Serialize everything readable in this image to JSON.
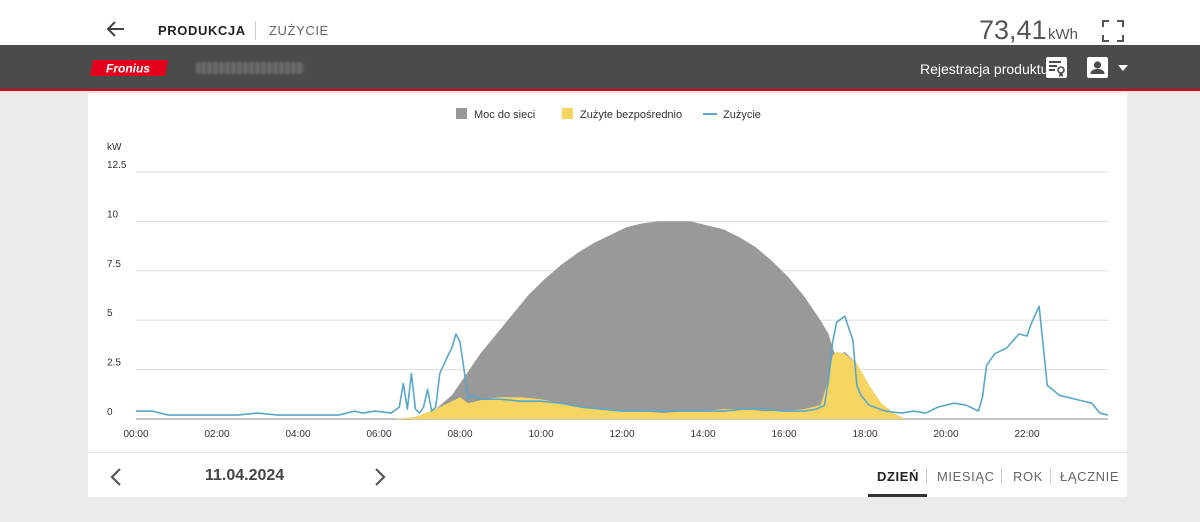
{
  "topbar": {
    "tab_production": "PRODUKCJA",
    "tab_consumption": "ZUŻYCIE",
    "energy_value": "73,41",
    "energy_unit": "kWh",
    "icons": [
      "back-arrow-icon",
      "fullscreen-icon"
    ]
  },
  "header": {
    "logo_text": "Fronius",
    "product_registration": "Rejestracja produktu",
    "icons": [
      "registration-icon",
      "user-icon",
      "caret-down-icon"
    ],
    "colors": {
      "header_bg": "#4b4b4b",
      "brand_red": "#e2001a"
    }
  },
  "chart_data": {
    "type": "area",
    "ylabel": "kW",
    "yticks": [
      "12.5",
      "10",
      "7.5",
      "5",
      "2.5",
      "0"
    ],
    "ylim": [
      0,
      12.5
    ],
    "xticks": [
      "00:00",
      "02:00",
      "04:00",
      "06:00",
      "08:00",
      "10:00",
      "12:00",
      "14:00",
      "16:00",
      "18:00",
      "20:00",
      "22:00"
    ],
    "xlim_hours": [
      0,
      24
    ],
    "grid": true,
    "legend_position": "top-center",
    "colors": {
      "grid": "#b0b0b0",
      "consumption": "#5aa7c7"
    },
    "series": [
      {
        "name": "Moc do sieci",
        "kind": "area",
        "color": "#999999",
        "x": [
          6.4,
          6.9,
          7.4,
          7.8,
          8.0,
          8.2,
          8.5,
          8.9,
          9.3,
          9.7,
          10.1,
          10.5,
          10.9,
          11.3,
          11.7,
          12.1,
          12.5,
          12.9,
          13.3,
          13.7,
          14.1,
          14.5,
          14.9,
          15.3,
          15.7,
          16.1,
          16.5,
          16.9,
          17.1,
          17.2,
          17.3,
          17.5,
          17.8,
          18.1,
          18.4,
          18.7,
          19.0
        ],
        "values": [
          0.0,
          0.1,
          0.5,
          1.2,
          1.8,
          2.4,
          3.3,
          4.3,
          5.3,
          6.3,
          7.1,
          7.8,
          8.4,
          8.9,
          9.3,
          9.7,
          9.9,
          10.0,
          10.0,
          10.0,
          9.8,
          9.6,
          9.2,
          8.7,
          8.0,
          7.2,
          6.2,
          5.0,
          4.3,
          3.6,
          3.1,
          3.4,
          2.8,
          1.7,
          0.8,
          0.3,
          0.0
        ]
      },
      {
        "name": "Zużyte bezpośrednio",
        "kind": "area",
        "color": "#f7d563",
        "x": [
          6.4,
          6.9,
          7.4,
          7.8,
          8.0,
          8.2,
          8.6,
          9.0,
          9.5,
          10.0,
          10.5,
          11.0,
          11.5,
          12.0,
          12.5,
          13.0,
          13.5,
          14.0,
          14.5,
          15.0,
          15.5,
          16.0,
          16.5,
          16.9,
          17.1,
          17.2,
          17.3,
          17.5,
          17.8,
          18.1,
          18.4,
          18.7,
          19.0
        ],
        "values": [
          0.0,
          0.1,
          0.5,
          0.9,
          1.1,
          0.8,
          1.0,
          1.1,
          1.1,
          1.0,
          0.8,
          0.6,
          0.5,
          0.4,
          0.4,
          0.3,
          0.4,
          0.4,
          0.5,
          0.5,
          0.4,
          0.4,
          0.5,
          0.7,
          2.0,
          3.2,
          3.4,
          3.3,
          2.8,
          1.7,
          0.8,
          0.3,
          0.0
        ]
      },
      {
        "name": "Zużycie",
        "kind": "line",
        "color": "#5aa7c7",
        "x": [
          0.0,
          0.4,
          0.8,
          1.0,
          1.5,
          2.0,
          2.5,
          3.0,
          3.5,
          4.0,
          4.5,
          5.0,
          5.4,
          5.6,
          5.9,
          6.3,
          6.5,
          6.6,
          6.7,
          6.8,
          6.9,
          7.0,
          7.1,
          7.2,
          7.3,
          7.4,
          7.5,
          7.7,
          7.8,
          7.9,
          8.0,
          8.1,
          8.2,
          8.3,
          8.5,
          9.0,
          9.5,
          10.0,
          10.5,
          11.0,
          11.5,
          12.0,
          12.5,
          13.0,
          13.5,
          14.0,
          14.5,
          15.0,
          15.5,
          16.0,
          16.5,
          16.8,
          17.0,
          17.1,
          17.2,
          17.3,
          17.5,
          17.7,
          17.8,
          17.9,
          18.1,
          18.5,
          18.9,
          19.2,
          19.5,
          19.8,
          20.2,
          20.5,
          20.8,
          20.9,
          21.0,
          21.2,
          21.5,
          21.8,
          22.0,
          22.1,
          22.3,
          22.5,
          22.8,
          23.2,
          23.6,
          23.8,
          24.0
        ],
        "values": [
          0.4,
          0.4,
          0.2,
          0.2,
          0.2,
          0.2,
          0.2,
          0.3,
          0.2,
          0.2,
          0.2,
          0.2,
          0.4,
          0.3,
          0.4,
          0.3,
          0.6,
          1.8,
          0.5,
          2.3,
          0.5,
          0.3,
          0.6,
          1.5,
          0.4,
          0.6,
          2.3,
          3.2,
          3.6,
          4.3,
          3.9,
          2.5,
          1.0,
          1.2,
          1.0,
          1.0,
          0.9,
          0.9,
          0.8,
          0.6,
          0.5,
          0.4,
          0.4,
          0.4,
          0.4,
          0.4,
          0.4,
          0.5,
          0.5,
          0.4,
          0.4,
          0.5,
          0.7,
          2.0,
          3.9,
          4.9,
          5.2,
          4.0,
          1.7,
          1.2,
          0.7,
          0.4,
          0.3,
          0.4,
          0.3,
          0.6,
          0.8,
          0.7,
          0.4,
          1.1,
          2.7,
          3.3,
          3.6,
          4.3,
          4.2,
          4.8,
          5.7,
          1.7,
          1.2,
          1.0,
          0.8,
          0.3,
          0.2
        ]
      }
    ]
  },
  "bottom": {
    "date": "11.04.2024",
    "periods": [
      "DZIEŃ",
      "MIESIĄC",
      "ROK",
      "ŁĄCZNIE"
    ],
    "active_period": "DZIEŃ",
    "icons": [
      "chevron-left-icon",
      "chevron-right-icon"
    ]
  }
}
